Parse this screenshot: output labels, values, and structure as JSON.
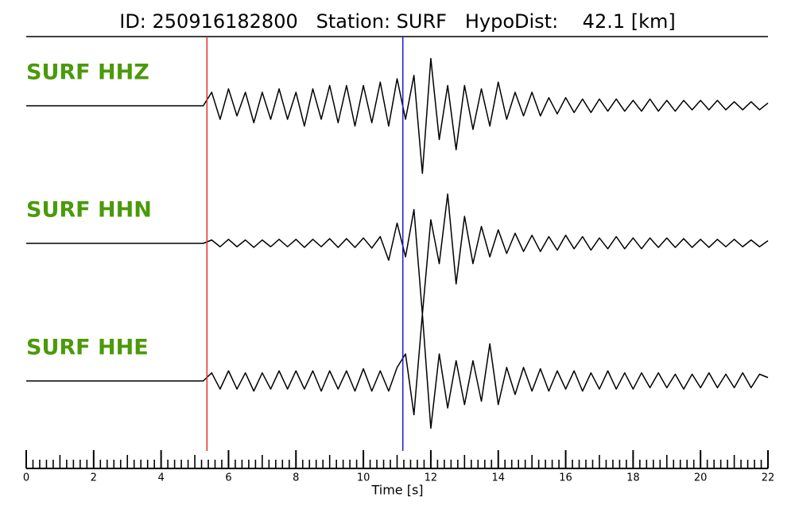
{
  "chart_data": {
    "type": "line",
    "title": "ID: 250916182800   Station: SURF   HypoDist:    42.1 [km]",
    "xlabel": "Time [s]",
    "xlim": [
      0,
      22
    ],
    "xticks": [
      0,
      2,
      4,
      6,
      8,
      10,
      12,
      14,
      16,
      18,
      20,
      22
    ],
    "xminorticks": [
      0.2,
      0.4,
      0.6,
      0.8,
      1,
      1.2,
      1.4,
      1.6,
      1.8,
      2.2,
      2.4,
      2.6,
      2.8,
      3,
      3.2,
      3.4,
      3.6,
      3.8,
      4.2,
      4.4,
      4.6,
      4.8,
      5,
      5.2,
      5.4,
      5.6,
      5.8,
      6.2,
      6.4,
      6.6,
      6.8,
      7,
      7.2,
      7.4,
      7.6,
      7.8,
      8.2,
      8.4,
      8.6,
      8.8,
      9,
      9.2,
      9.4,
      9.6,
      9.8,
      10.2,
      10.4,
      10.6,
      10.8,
      11,
      11.2,
      11.4,
      11.6,
      11.8,
      12.2,
      12.4,
      12.6,
      12.8,
      13,
      13.2,
      13.4,
      13.6,
      13.8,
      14.2,
      14.4,
      14.6,
      14.8,
      15,
      15.2,
      15.4,
      15.6,
      15.8,
      16.2,
      16.4,
      16.6,
      16.8,
      17,
      17.2,
      17.4,
      17.6,
      17.8,
      18.2,
      18.4,
      18.6,
      18.8,
      19,
      19.2,
      19.4,
      19.6,
      19.8,
      20.2,
      20.4,
      20.6,
      20.8,
      21,
      21.2,
      21.4,
      21.6,
      21.8
    ],
    "label_color": "#4a9a0a",
    "markers": [
      {
        "x": 5.36,
        "color": "#e0302a"
      },
      {
        "x": 11.17,
        "color": "#1a1ad0"
      }
    ],
    "x": [
      0,
      0.25,
      0.5,
      0.75,
      1,
      1.25,
      1.5,
      1.75,
      2,
      2.25,
      2.5,
      2.75,
      3,
      3.25,
      3.5,
      3.75,
      4,
      4.25,
      4.5,
      4.75,
      5,
      5.25,
      5.5,
      5.75,
      6,
      6.25,
      6.5,
      6.75,
      7,
      7.25,
      7.5,
      7.75,
      8,
      8.25,
      8.5,
      8.75,
      9,
      9.25,
      9.5,
      9.75,
      10,
      10.25,
      10.5,
      10.75,
      11,
      11.25,
      11.5,
      11.75,
      12,
      12.25,
      12.5,
      12.75,
      13,
      13.25,
      13.5,
      13.75,
      14,
      14.25,
      14.5,
      14.75,
      15,
      15.25,
      15.5,
      15.75,
      16,
      16.25,
      16.5,
      16.75,
      17,
      17.25,
      17.5,
      17.75,
      18,
      18.25,
      18.5,
      18.75,
      19,
      19.25,
      19.5,
      19.75,
      20,
      20.25,
      20.5,
      20.75,
      21,
      21.25,
      21.5,
      21.75,
      22
    ],
    "series": [
      {
        "name": "SURF HHZ",
        "color": "#000000",
        "values": [
          0,
          0,
          0,
          0,
          0,
          0,
          0,
          0,
          0,
          0,
          0,
          0,
          0,
          0,
          0,
          0,
          0,
          0,
          0,
          0,
          0,
          0,
          0.2,
          -0.2,
          0.25,
          -0.15,
          0.2,
          -0.25,
          0.2,
          -0.2,
          0.25,
          -0.2,
          0.2,
          -0.3,
          0.25,
          -0.2,
          0.3,
          -0.25,
          0.3,
          -0.3,
          0.3,
          -0.25,
          0.35,
          -0.3,
          0.4,
          -0.2,
          0.45,
          -1.0,
          0.7,
          -0.5,
          0.3,
          -0.65,
          0.3,
          -0.35,
          0.25,
          -0.3,
          0.35,
          -0.2,
          0.2,
          -0.15,
          0.2,
          -0.15,
          0.12,
          -0.12,
          0.12,
          -0.1,
          0.1,
          -0.1,
          0.1,
          -0.08,
          0.1,
          -0.08,
          0.08,
          -0.08,
          0.1,
          -0.08,
          0.08,
          -0.08,
          0.08,
          -0.06,
          0.08,
          -0.06,
          0.08,
          -0.06,
          0.06,
          -0.06,
          0.06,
          -0.06,
          0.04
        ]
      },
      {
        "name": "SURF HHN",
        "color": "#000000",
        "values": [
          0,
          0,
          0,
          0,
          0,
          0,
          0,
          0,
          0,
          0,
          0,
          0,
          0,
          0,
          0,
          0,
          0,
          0,
          0,
          0,
          0,
          0,
          0.05,
          -0.05,
          0.06,
          -0.05,
          0.05,
          -0.06,
          0.05,
          -0.05,
          0.06,
          -0.05,
          0.06,
          -0.06,
          0.06,
          -0.05,
          0.07,
          -0.06,
          0.07,
          -0.06,
          0.08,
          -0.07,
          0.1,
          -0.25,
          0.3,
          -0.2,
          0.5,
          -1.05,
          0.35,
          -0.3,
          0.73,
          -0.6,
          0.4,
          -0.3,
          0.25,
          -0.2,
          0.2,
          -0.15,
          0.15,
          -0.12,
          0.12,
          -0.12,
          0.1,
          -0.1,
          0.12,
          -0.08,
          0.1,
          -0.1,
          0.08,
          -0.08,
          0.1,
          -0.08,
          0.08,
          -0.08,
          0.08,
          -0.06,
          0.08,
          -0.06,
          0.07,
          -0.06,
          0.06,
          -0.06,
          0.06,
          -0.05,
          0.06,
          -0.05,
          0.05,
          -0.05,
          0.04
        ]
      },
      {
        "name": "SURF HHE",
        "color": "#000000",
        "values": [
          0,
          0,
          0,
          0,
          0,
          0,
          0,
          0,
          0,
          0,
          0,
          0,
          0,
          0,
          0,
          0,
          0,
          0,
          0,
          0,
          0,
          0,
          0.12,
          -0.12,
          0.15,
          -0.12,
          0.12,
          -0.15,
          0.12,
          -0.12,
          0.15,
          -0.12,
          0.15,
          -0.12,
          0.15,
          -0.15,
          0.15,
          -0.12,
          0.15,
          -0.15,
          0.18,
          -0.15,
          0.15,
          -0.15,
          0.2,
          0.4,
          -0.5,
          0.99,
          -0.7,
          0.4,
          -0.4,
          0.3,
          -0.35,
          0.3,
          -0.3,
          0.55,
          -0.35,
          0.2,
          -0.2,
          0.2,
          -0.15,
          0.18,
          -0.15,
          0.15,
          -0.12,
          0.15,
          -0.15,
          0.12,
          -0.12,
          0.15,
          -0.12,
          0.12,
          -0.12,
          0.12,
          -0.1,
          0.12,
          -0.1,
          0.1,
          -0.12,
          0.1,
          -0.1,
          0.12,
          -0.1,
          0.1,
          -0.1,
          0.12,
          -0.1,
          0.1,
          0.05
        ]
      }
    ]
  }
}
